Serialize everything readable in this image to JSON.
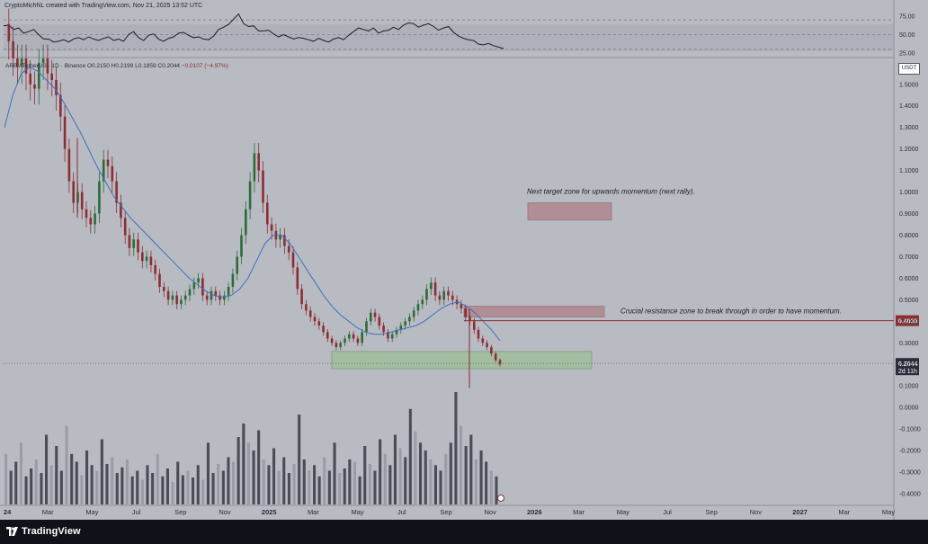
{
  "header": {
    "credit": "CryptoMichNL created with TradingView.com, Nov 21, 2025 13:52 UTC"
  },
  "legend": {
    "symbol": "ARB / TetherUS · 1D · Binance",
    "open": "O0.2150",
    "high": "H0.2199",
    "low": "L0.1859",
    "close": "C0.2044",
    "change": "−0.0107 (−4.97%)"
  },
  "currency_label": "USDT",
  "footer": {
    "brand": "TradingView"
  },
  "chart_data": [
    {
      "type": "line",
      "pane": "oscillator",
      "y_ticks": [
        "75.00",
        "50.00",
        "25.00"
      ],
      "ylim": [
        20,
        80
      ],
      "reference_lines": [
        70,
        50,
        30
      ],
      "series": [
        {
          "values": [
            62,
            63,
            57,
            59,
            52,
            54,
            57,
            50,
            44,
            44,
            40,
            41,
            43,
            40,
            44,
            46,
            43,
            47,
            44,
            42,
            45,
            47,
            42,
            44,
            41,
            50,
            54,
            46,
            42,
            49,
            51,
            44,
            41,
            45,
            47,
            52,
            53,
            49,
            46,
            47,
            44,
            43,
            48,
            57,
            60,
            64,
            71,
            78,
            65,
            61,
            62,
            55,
            55,
            56,
            51,
            47,
            50,
            47,
            44,
            46,
            45,
            43,
            41,
            45,
            42,
            40,
            44,
            46,
            43,
            49,
            54,
            59,
            57,
            55,
            59,
            52,
            55,
            56,
            60,
            57,
            63,
            66,
            65,
            60,
            63,
            65,
            61,
            56,
            59,
            61,
            53,
            48,
            45,
            43,
            42,
            37,
            36,
            38,
            35,
            33,
            31
          ]
        }
      ]
    },
    {
      "type": "candlestick",
      "pane": "price",
      "title": "ARB / TetherUS · 1D · Binance",
      "x_ticks": [
        "24",
        "Mar",
        "May",
        "Jul",
        "Sep",
        "Nov",
        "2025",
        "Mar",
        "May",
        "Jul",
        "Sep",
        "Nov",
        "2026",
        "Mar",
        "May",
        "Jul",
        "Sep",
        "Nov",
        "2027",
        "Mar",
        "May"
      ],
      "y_ticks": [
        "1.5000",
        "1.4000",
        "1.3000",
        "1.2000",
        "1.1000",
        "1.0000",
        "0.9000",
        "0.8000",
        "0.7000",
        "0.6000",
        "0.5000",
        "0.4000",
        "0.3000",
        "0.2000",
        "0.1000",
        "0.0000",
        "-0.1000",
        "-0.2000",
        "-0.3000",
        "-0.4000"
      ],
      "ylim": [
        -0.45,
        1.62
      ],
      "price_levels": [
        {
          "label": "0.4030",
          "value": 0.403
        },
        {
          "label": "0.2044",
          "value": 0.2044,
          "sublabel": "2d 11h"
        }
      ],
      "zones": [
        {
          "kind": "target",
          "from": "Aug 2025",
          "to": "Apr 2026",
          "low": 0.87,
          "high": 0.95
        },
        {
          "kind": "resistance",
          "from": "Oct 2025",
          "to": "Mar 2026",
          "low": 0.42,
          "high": 0.47
        },
        {
          "kind": "support",
          "from": "Mar 2025",
          "to": "Mar 2026",
          "low": 0.18,
          "high": 0.26
        }
      ],
      "annotations": [
        "Next target zone for upwards momentum (next rally).",
        "Crucial resistance zone to break through in order to have momentum."
      ],
      "price_path": [
        1.78,
        1.7,
        1.62,
        1.58,
        1.62,
        1.55,
        1.5,
        1.48,
        1.6,
        1.62,
        1.55,
        1.52,
        1.45,
        1.35,
        1.2,
        1.05,
        0.95,
        1.0,
        0.92,
        0.88,
        0.85,
        0.9,
        1.05,
        1.15,
        1.12,
        1.05,
        0.95,
        0.88,
        0.8,
        0.74,
        0.78,
        0.72,
        0.68,
        0.7,
        0.66,
        0.62,
        0.56,
        0.54,
        0.5,
        0.52,
        0.48,
        0.5,
        0.52,
        0.55,
        0.58,
        0.6,
        0.52,
        0.5,
        0.54,
        0.52,
        0.5,
        0.52,
        0.56,
        0.62,
        0.7,
        0.8,
        0.92,
        1.05,
        1.18,
        1.1,
        0.95,
        0.85,
        0.82,
        0.78,
        0.8,
        0.75,
        0.72,
        0.65,
        0.55,
        0.48,
        0.45,
        0.42,
        0.4,
        0.38,
        0.35,
        0.32,
        0.3,
        0.28,
        0.3,
        0.32,
        0.34,
        0.32,
        0.3,
        0.35,
        0.4,
        0.44,
        0.42,
        0.38,
        0.35,
        0.32,
        0.34,
        0.36,
        0.38,
        0.4,
        0.42,
        0.45,
        0.48,
        0.5,
        0.55,
        0.58,
        0.52,
        0.5,
        0.54,
        0.52,
        0.5,
        0.48,
        0.46,
        0.42,
        0.4,
        0.36,
        0.32,
        0.3,
        0.28,
        0.25,
        0.22,
        0.2
      ],
      "ma_path": [
        1.3,
        1.45,
        1.55,
        1.58,
        1.56,
        1.52,
        1.48,
        1.42,
        1.35,
        1.28,
        1.2,
        1.12,
        1.05,
        0.98,
        0.93,
        0.88,
        0.84,
        0.8,
        0.76,
        0.72,
        0.68,
        0.64,
        0.6,
        0.57,
        0.54,
        0.52,
        0.51,
        0.52,
        0.55,
        0.6,
        0.68,
        0.76,
        0.8,
        0.8,
        0.76,
        0.7,
        0.64,
        0.58,
        0.52,
        0.47,
        0.43,
        0.4,
        0.37,
        0.35,
        0.34,
        0.34,
        0.35,
        0.36,
        0.37,
        0.38,
        0.4,
        0.43,
        0.46,
        0.48,
        0.49,
        0.47,
        0.44,
        0.4,
        0.36,
        0.31
      ]
    },
    {
      "type": "bar",
      "pane": "volume",
      "values": [
        0.45,
        0.3,
        0.38,
        0.55,
        0.25,
        0.32,
        0.4,
        0.28,
        0.62,
        0.35,
        0.52,
        0.3,
        0.7,
        0.45,
        0.38,
        0.26,
        0.48,
        0.35,
        0.3,
        0.58,
        0.36,
        0.42,
        0.28,
        0.33,
        0.4,
        0.25,
        0.3,
        0.22,
        0.35,
        0.28,
        0.45,
        0.25,
        0.32,
        0.2,
        0.38,
        0.26,
        0.3,
        0.24,
        0.35,
        0.22,
        0.55,
        0.28,
        0.36,
        0.3,
        0.42,
        0.38,
        0.6,
        0.72,
        0.55,
        0.48,
        0.66,
        0.4,
        0.35,
        0.5,
        0.3,
        0.42,
        0.28,
        0.36,
        0.8,
        0.4,
        0.3,
        0.35,
        0.25,
        0.42,
        0.3,
        0.55,
        0.28,
        0.32,
        0.4,
        0.38,
        0.25,
        0.52,
        0.36,
        0.3,
        0.58,
        0.45,
        0.35,
        0.62,
        0.5,
        0.42,
        0.85,
        0.65,
        0.55,
        0.48,
        0.4,
        0.35,
        0.3,
        0.45,
        0.55,
        1.0,
        0.7,
        0.52,
        0.62,
        0.4,
        0.48,
        0.38,
        0.3,
        0.25
      ]
    }
  ]
}
